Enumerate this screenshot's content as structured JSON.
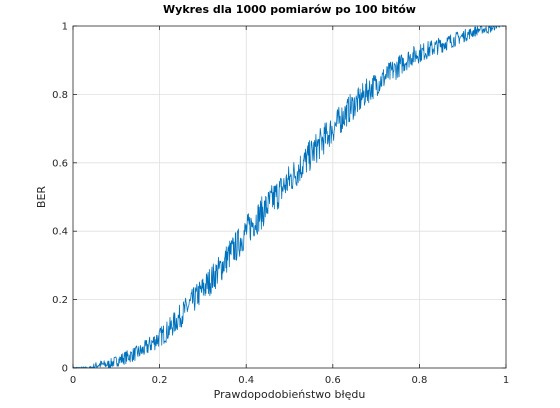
{
  "chart_data": {
    "type": "line",
    "title": "Wykres dla 1000 pomiarów po 100 bitów",
    "xlabel": "Prawdopodobieństwo błędu",
    "ylabel": "BER",
    "xlim": [
      0,
      1
    ],
    "ylim": [
      0,
      1
    ],
    "xticks": [
      0,
      0.2,
      0.4,
      0.6,
      0.8,
      1
    ],
    "yticks": [
      0,
      0.2,
      0.4,
      0.6,
      0.8,
      1
    ],
    "xtick_labels": [
      "0",
      "0.2",
      "0.4",
      "0.6",
      "0.8",
      "1"
    ],
    "ytick_labels": [
      "0",
      "0.2",
      "0.4",
      "0.6",
      "0.8",
      "1"
    ],
    "grid": true,
    "series": [
      {
        "color": "#0072BD",
        "x": [
          0.0,
          0.02,
          0.04,
          0.06,
          0.08,
          0.1,
          0.12,
          0.14,
          0.16,
          0.18,
          0.2,
          0.22,
          0.24,
          0.26,
          0.28,
          0.3,
          0.32,
          0.34,
          0.36,
          0.38,
          0.4,
          0.42,
          0.44,
          0.46,
          0.48,
          0.5,
          0.52,
          0.54,
          0.56,
          0.58,
          0.6,
          0.62,
          0.64,
          0.66,
          0.68,
          0.7,
          0.72,
          0.74,
          0.76,
          0.78,
          0.8,
          0.82,
          0.84,
          0.86,
          0.88,
          0.9,
          0.92,
          0.94,
          0.96,
          0.98,
          1.0
        ],
        "y": [
          0.0,
          0.0,
          0.0,
          0.01,
          0.01,
          0.02,
          0.03,
          0.04,
          0.05,
          0.07,
          0.09,
          0.11,
          0.14,
          0.17,
          0.2,
          0.23,
          0.26,
          0.29,
          0.33,
          0.36,
          0.4,
          0.43,
          0.46,
          0.49,
          0.52,
          0.55,
          0.58,
          0.61,
          0.64,
          0.67,
          0.7,
          0.73,
          0.76,
          0.78,
          0.81,
          0.83,
          0.85,
          0.87,
          0.89,
          0.91,
          0.92,
          0.93,
          0.94,
          0.95,
          0.96,
          0.97,
          0.98,
          0.99,
          0.99,
          1.0,
          1.0
        ]
      }
    ]
  }
}
